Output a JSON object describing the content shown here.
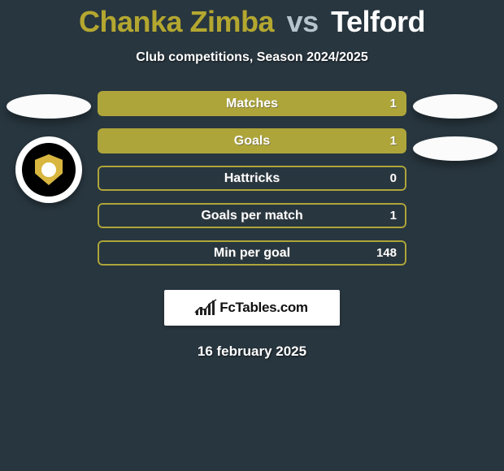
{
  "header": {
    "player1": "Chanka Zimba",
    "vs": "vs",
    "player2": "Telford"
  },
  "subtitle": "Club competitions, Season 2024/2025",
  "colors": {
    "player1": "#b4a730",
    "player2": "#ffffff",
    "vs": "#b6c4cd",
    "bar_fill_p1": "#aea53a",
    "bar_fill_p2": "#ffffff",
    "bar_border": "#aea53a",
    "bar_empty": "#28363f",
    "label_on_fill": "#ffffff",
    "value_on_fill": "#ffffff",
    "value_on_empty": "#ffffff"
  },
  "stats": [
    {
      "label": "Matches",
      "p1": "",
      "p2": "1",
      "fill_p1_pct": 100,
      "fill_p2_pct": 0
    },
    {
      "label": "Goals",
      "p1": "",
      "p2": "1",
      "fill_p1_pct": 100,
      "fill_p2_pct": 0
    },
    {
      "label": "Hattricks",
      "p1": "",
      "p2": "0",
      "fill_p1_pct": 0,
      "fill_p2_pct": 0
    },
    {
      "label": "Goals per match",
      "p1": "",
      "p2": "1",
      "fill_p1_pct": 0,
      "fill_p2_pct": 0
    },
    {
      "label": "Min per goal",
      "p1": "",
      "p2": "148",
      "fill_p1_pct": 0,
      "fill_p2_pct": 0
    }
  ],
  "footer": {
    "brand": "FcTables.com",
    "date": "16 february 2025"
  }
}
